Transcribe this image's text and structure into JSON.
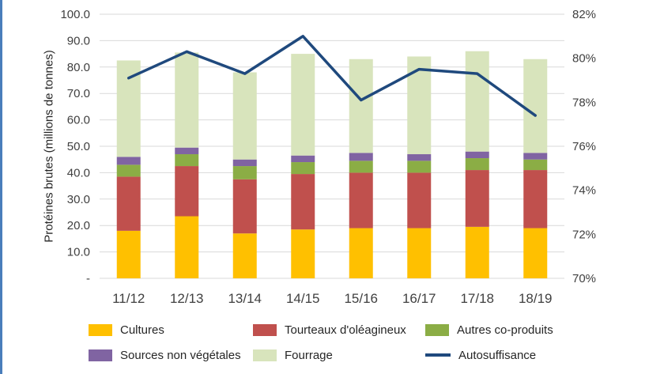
{
  "chart_data": {
    "type": "bar",
    "subtype": "stacked-bar-with-line",
    "categories": [
      "11/12",
      "12/13",
      "13/14",
      "14/15",
      "15/16",
      "16/17",
      "17/18",
      "18/19"
    ],
    "series": [
      {
        "name": "Cultures",
        "type": "bar",
        "color": "#FFC000",
        "values": [
          18,
          23.5,
          17,
          18.5,
          19,
          19,
          19.5,
          19
        ]
      },
      {
        "name": "Tourteaux d'oléagineux",
        "type": "bar",
        "color": "#C0504D",
        "values": [
          20.5,
          19,
          20.5,
          21,
          21,
          21,
          21.5,
          22
        ]
      },
      {
        "name": "Autres co-produits",
        "type": "bar",
        "color": "#8BAD45",
        "values": [
          4.5,
          4.5,
          5,
          4.5,
          4.5,
          4.5,
          4.5,
          4
        ]
      },
      {
        "name": "Sources non végétales",
        "type": "bar",
        "color": "#8064A2",
        "values": [
          3,
          2.5,
          2.5,
          2.5,
          3,
          2.5,
          2.5,
          2.5
        ]
      },
      {
        "name": "Fourrage",
        "type": "bar",
        "color": "#D8E4BC",
        "values": [
          36.5,
          36,
          33,
          38.5,
          35.5,
          37,
          38,
          35.5
        ]
      },
      {
        "name": "Autosuffisance",
        "type": "line",
        "axis": "right",
        "color": "#1F497D",
        "values": [
          79.1,
          80.3,
          79.3,
          81.0,
          78.1,
          79.5,
          79.3,
          77.4
        ]
      }
    ],
    "left_axis": {
      "label": "Protéines brutes (millions de tonnes)",
      "min": 0,
      "max": 100,
      "step": 10,
      "tick_labels": [
        "-",
        "10.0",
        "20.0",
        "30.0",
        "40.0",
        "50.0",
        "60.0",
        "70.0",
        "80.0",
        "90.0",
        "100.0"
      ]
    },
    "right_axis": {
      "min": 70,
      "max": 82,
      "step": 2,
      "tick_labels": [
        "70%",
        "72%",
        "74%",
        "76%",
        "78%",
        "80%",
        "82%"
      ]
    },
    "grid": true,
    "legend_position": "bottom"
  }
}
